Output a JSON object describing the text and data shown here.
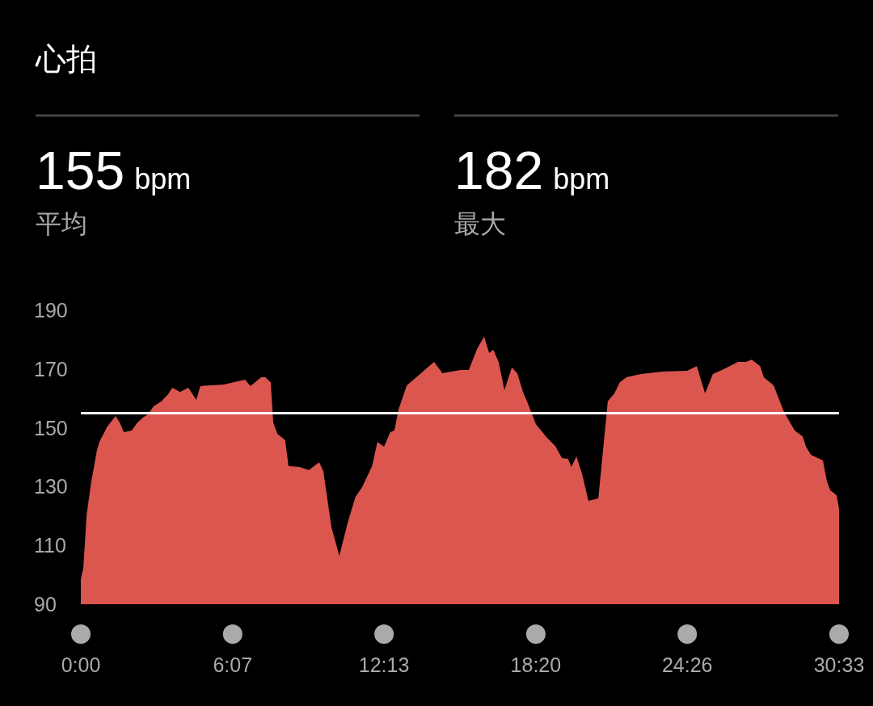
{
  "chart_data": {
    "type": "area",
    "title": "心拍",
    "annotations": [
      "155",
      "bpm",
      "平均",
      "182",
      "bpm",
      "最大"
    ],
    "x": [
      0,
      6,
      14,
      25,
      39,
      45,
      64,
      84,
      94,
      104,
      123,
      137,
      150,
      162,
      176,
      195,
      211,
      221,
      240,
      260,
      279,
      289,
      307,
      346,
      397,
      410,
      436,
      446,
      459,
      465,
      475,
      494,
      502,
      528,
      551,
      576,
      586,
      606,
      625,
      645,
      664,
      680,
      704,
      717,
      733,
      748,
      758,
      768,
      788,
      815,
      854,
      874,
      918,
      938,
      958,
      975,
      987,
      997,
      1010,
      1024,
      1042,
      1055,
      1069,
      1081,
      1100,
      1124,
      1147,
      1163,
      1178,
      1186,
      1198,
      1212,
      1227,
      1251,
      1260,
      1274,
      1290,
      1303,
      1319,
      1354,
      1407,
      1466,
      1489,
      1499,
      1509,
      1528,
      1550,
      1589,
      1608,
      1622,
      1642,
      1651,
      1675,
      1700,
      1726,
      1745,
      1753,
      1765,
      1794,
      1804,
      1812,
      1827,
      1833
    ],
    "series": [
      {
        "color": "#dc5650",
        "values": [
          98.5,
          102.4,
          120.5,
          131.5,
          142.5,
          145.2,
          150.4,
          154.0,
          151.8,
          148.5,
          149.1,
          151.8,
          153.5,
          154.6,
          157.3,
          159.0,
          161.4,
          163.6,
          162.2,
          163.6,
          159.5,
          164.2,
          164.4,
          164.7,
          166.4,
          164.2,
          167.2,
          167.2,
          165.5,
          151.8,
          148.0,
          145.8,
          137.0,
          136.7,
          135.6,
          138.3,
          135.3,
          116.1,
          106.5,
          117.7,
          126.5,
          129.8,
          137.0,
          145.2,
          143.6,
          148.5,
          149.1,
          156.2,
          164.4,
          167.7,
          172.4,
          168.6,
          169.7,
          169.7,
          176.8,
          181.0,
          175.4,
          176.5,
          172.4,
          162.8,
          170.5,
          168.6,
          162.2,
          158.1,
          151.3,
          147.1,
          143.8,
          139.7,
          139.4,
          136.7,
          140.3,
          134.2,
          125.2,
          126.0,
          138.9,
          159.0,
          161.7,
          165.5,
          167.2,
          168.3,
          169.1,
          169.4,
          171.0,
          166.4,
          161.7,
          168.3,
          169.7,
          172.4,
          172.4,
          173.2,
          171.0,
          167.2,
          164.4,
          155.4,
          149.1,
          147.1,
          143.6,
          140.8,
          138.9,
          131.5,
          128.7,
          127.1,
          122.4
        ]
      }
    ],
    "xlim": [
      0,
      1833
    ],
    "xticks": [
      {
        "value": 0,
        "label": "0:00"
      },
      {
        "value": 367,
        "label": "6:07"
      },
      {
        "value": 733,
        "label": "12:13"
      },
      {
        "value": 1100,
        "label": "18:20"
      },
      {
        "value": 1466,
        "label": "24:26"
      },
      {
        "value": 1833,
        "label": "30:33"
      }
    ],
    "ylim": [
      90,
      190
    ],
    "yticks": [
      90,
      110,
      130,
      150,
      170,
      190
    ],
    "ref_lines": [
      {
        "axis": "y",
        "value": 155,
        "color": "#ffffff"
      }
    ]
  }
}
